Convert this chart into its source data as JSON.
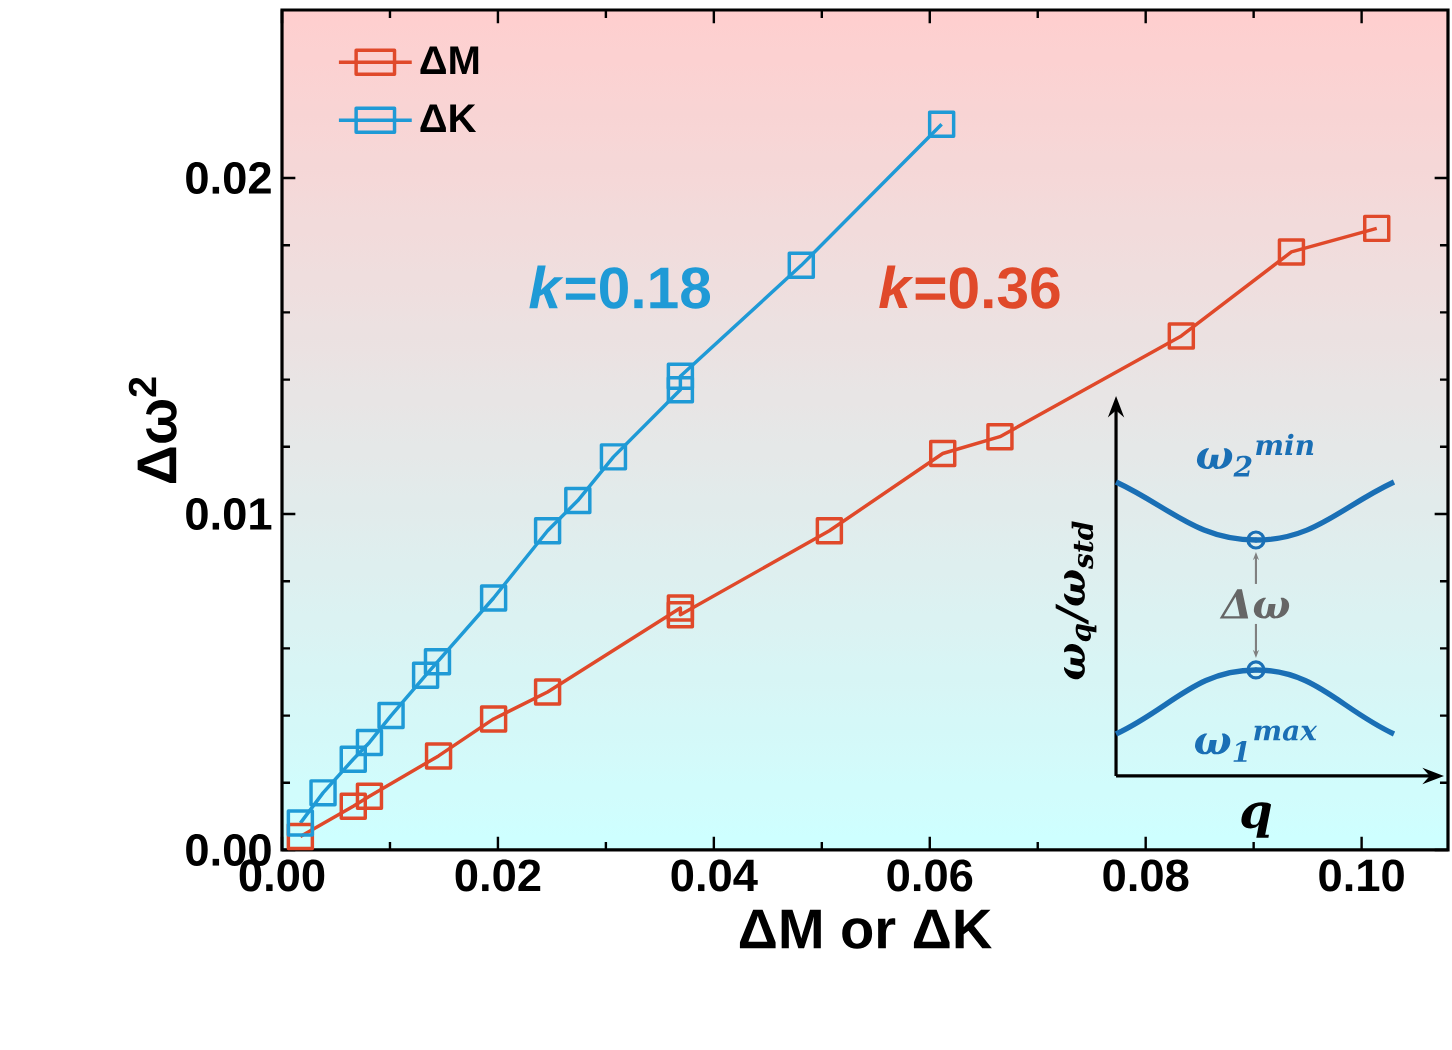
{
  "chart_data": {
    "type": "line",
    "xlabel": "ΔM or ΔK",
    "ylabel": "Δω$^{2}$",
    "xlim": [
      0,
      0.108
    ],
    "ylim": [
      0,
      0.025
    ],
    "xticks": [
      {
        "value": 0,
        "label": "0.00"
      },
      {
        "value": 0.02,
        "label": "0.02"
      },
      {
        "value": 0.04,
        "label": "0.04"
      },
      {
        "value": 0.06,
        "label": "0.06"
      },
      {
        "value": 0.08,
        "label": "0.08"
      },
      {
        "value": 0.1,
        "label": "0.10"
      }
    ],
    "yticks": [
      {
        "value": 0,
        "label": "0.00"
      },
      {
        "value": 0.01,
        "label": "0.01"
      },
      {
        "value": 0.02,
        "label": "0.02"
      }
    ],
    "legend": "top left",
    "marker": "square",
    "line_style": "solid",
    "grid": false,
    "series": [
      {
        "name": "ΔM",
        "color": "#e0492a",
        "x": [
          0.0017,
          0.0066,
          0.0081,
          0.0145,
          0.0196,
          0.0246,
          0.0369,
          0.0369,
          0.0507,
          0.0612,
          0.0665,
          0.0833,
          0.0935,
          0.1014
        ],
        "values": [
          0.0004,
          0.0013,
          0.0016,
          0.0028,
          0.0039,
          0.0047,
          0.0072,
          0.007,
          0.0095,
          0.0118,
          0.0123,
          0.0153,
          0.0178,
          0.0185
        ]
      },
      {
        "name": "ΔK",
        "color": "#1f9ad6",
        "x": [
          0.0017,
          0.0038,
          0.0066,
          0.0081,
          0.0101,
          0.0133,
          0.0144,
          0.0196,
          0.0246,
          0.0274,
          0.0307,
          0.0369,
          0.0369,
          0.0481,
          0.0611
        ],
        "values": [
          0.0008,
          0.0017,
          0.0027,
          0.0032,
          0.004,
          0.0052,
          0.0056,
          0.0075,
          0.0095,
          0.0104,
          0.0117,
          0.0137,
          0.0141,
          0.0174,
          0.0216
        ]
      }
    ],
    "annotations": [
      "*k*=0.18",
      "*k*=0.36",
      "ω$_{2}$$^{min}$",
      "Δω",
      "ω$_{1}$$^{max}$",
      "q",
      "ω$_{q}$/ω$_{std}$"
    ]
  }
}
